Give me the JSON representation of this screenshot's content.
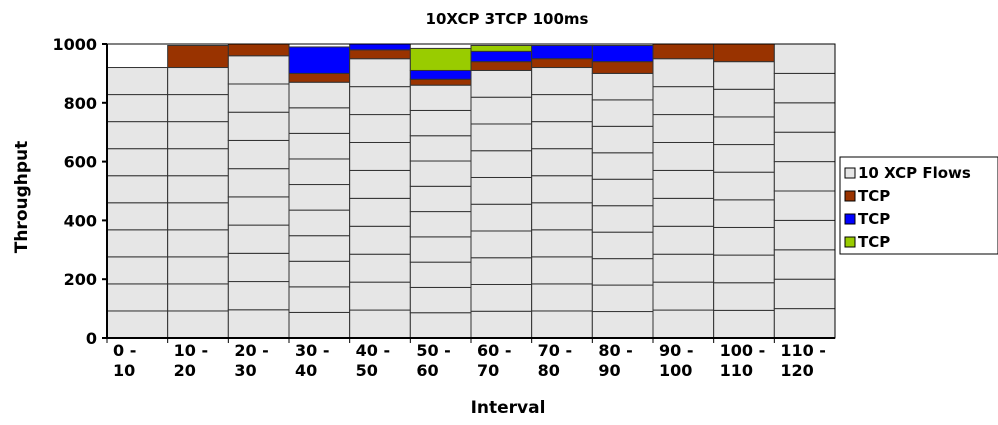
{
  "chart_data": {
    "type": "bar",
    "stacked": true,
    "title": "10XCP 3TCP 100ms",
    "xlabel": "Interval",
    "ylabel": "Throughput",
    "ylim": [
      0,
      1000
    ],
    "yticks": [
      "0",
      "200",
      "400",
      "600",
      "800",
      "1000"
    ],
    "categories": [
      [
        "0 -",
        "10"
      ],
      [
        "10 -",
        "20"
      ],
      [
        "20 -",
        "30"
      ],
      [
        "30 -",
        "40"
      ],
      [
        "40 -",
        "50"
      ],
      [
        "50 -",
        "60"
      ],
      [
        "60 -",
        "70"
      ],
      [
        "70 -",
        "80"
      ],
      [
        "80 -",
        "90"
      ],
      [
        "90 -",
        "100"
      ],
      [
        "100 -",
        "110"
      ],
      [
        "110 -",
        "120"
      ]
    ],
    "xcp_flow_values": [
      [
        92,
        92,
        92,
        92,
        92,
        92,
        92,
        92,
        92,
        92
      ],
      [
        92,
        92,
        92,
        92,
        92,
        92,
        92,
        92,
        92,
        92
      ],
      [
        96,
        96,
        96,
        96,
        96,
        96,
        96,
        96,
        96,
        96
      ],
      [
        87,
        87,
        87,
        87,
        87,
        87,
        87,
        87,
        87,
        87
      ],
      [
        95,
        95,
        95,
        95,
        95,
        95,
        95,
        95,
        95,
        95
      ],
      [
        86,
        86,
        86,
        86,
        86,
        86,
        86,
        86,
        86,
        86
      ],
      [
        91,
        91,
        91,
        91,
        91,
        91,
        91,
        91,
        91,
        91
      ],
      [
        92,
        92,
        92,
        92,
        92,
        92,
        92,
        92,
        92,
        92
      ],
      [
        90,
        90,
        90,
        90,
        90,
        90,
        90,
        90,
        90,
        90
      ],
      [
        95,
        95,
        95,
        95,
        95,
        95,
        95,
        95,
        95,
        95
      ],
      [
        94,
        94,
        94,
        94,
        94,
        94,
        94,
        94,
        94,
        94
      ],
      [
        100,
        100,
        100,
        100,
        100,
        100,
        100,
        100,
        100,
        100
      ]
    ],
    "series": [
      {
        "name": "10 XCP Flows",
        "color": "#e6e6e6",
        "values": [
          920,
          920,
          960,
          870,
          950,
          860,
          910,
          920,
          900,
          950,
          940,
          1000
        ]
      },
      {
        "name": "TCP",
        "color": "#993300",
        "values": [
          0,
          75,
          40,
          30,
          30,
          20,
          30,
          30,
          40,
          50,
          60,
          0
        ]
      },
      {
        "name": "TCP",
        "color": "#0000ff",
        "values": [
          0,
          0,
          0,
          90,
          20,
          30,
          35,
          45,
          55,
          0,
          0,
          0
        ]
      },
      {
        "name": "TCP",
        "color": "#99cc00",
        "values": [
          0,
          0,
          0,
          0,
          0,
          75,
          20,
          0,
          0,
          0,
          0,
          0
        ]
      }
    ],
    "legend_position": "right",
    "grid": false
  }
}
